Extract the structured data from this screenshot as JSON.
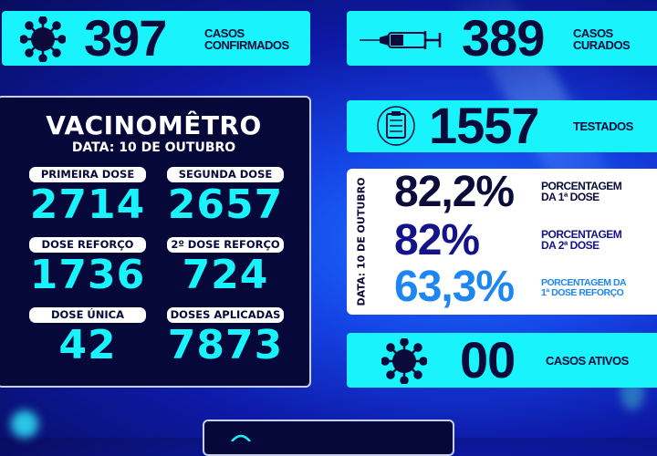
{
  "confirmed": {
    "value": "397",
    "label_line1": "CASOS",
    "label_line2": "CONFIRMADOS",
    "icon": "virus-icon"
  },
  "cured": {
    "value": "389",
    "label_line1": "CASOS",
    "label_line2": "CURADOS",
    "icon": "syringe-icon"
  },
  "tested": {
    "value": "1557",
    "label": "TESTADOS",
    "icon": "clipboard-icon"
  },
  "active": {
    "value": "00",
    "label": "CASOS ATIVOS",
    "icon": "virus-icon"
  },
  "vacinometro": {
    "title": "VACINOMÊTRO",
    "date": "DATA: 10 DE OUTUBRO",
    "items": [
      {
        "label": "PRIMEIRA DOSE",
        "value": "2714"
      },
      {
        "label": "SEGUNDA DOSE",
        "value": "2657"
      },
      {
        "label": "DOSE REFORÇO",
        "value": "1736"
      },
      {
        "label": "2º DOSE REFORÇO",
        "value": "724"
      },
      {
        "label": "DOSE ÚNICA",
        "value": "42"
      },
      {
        "label": "DOSES APLICADAS",
        "value": "7873"
      }
    ]
  },
  "percentages": {
    "date": "DATA: 10 DE OUTUBRO",
    "items": [
      {
        "value": "82,2%",
        "label_line1": "PORCENTAGEM",
        "label_line2": "DA 1ª DOSE",
        "color": "#0a0b3a"
      },
      {
        "value": "82%",
        "label_line1": "PORCENTAGEM",
        "label_line2": "DA 2ª DOSE",
        "color": "#14148a"
      },
      {
        "value": "63,3%",
        "label_line1": "PORCENTAGEM DA",
        "label_line2": "1ª DOSE REFORÇO",
        "color": "#1e86f0"
      }
    ]
  },
  "colors": {
    "cyan": "#19f3fb",
    "navy": "#06083a"
  }
}
